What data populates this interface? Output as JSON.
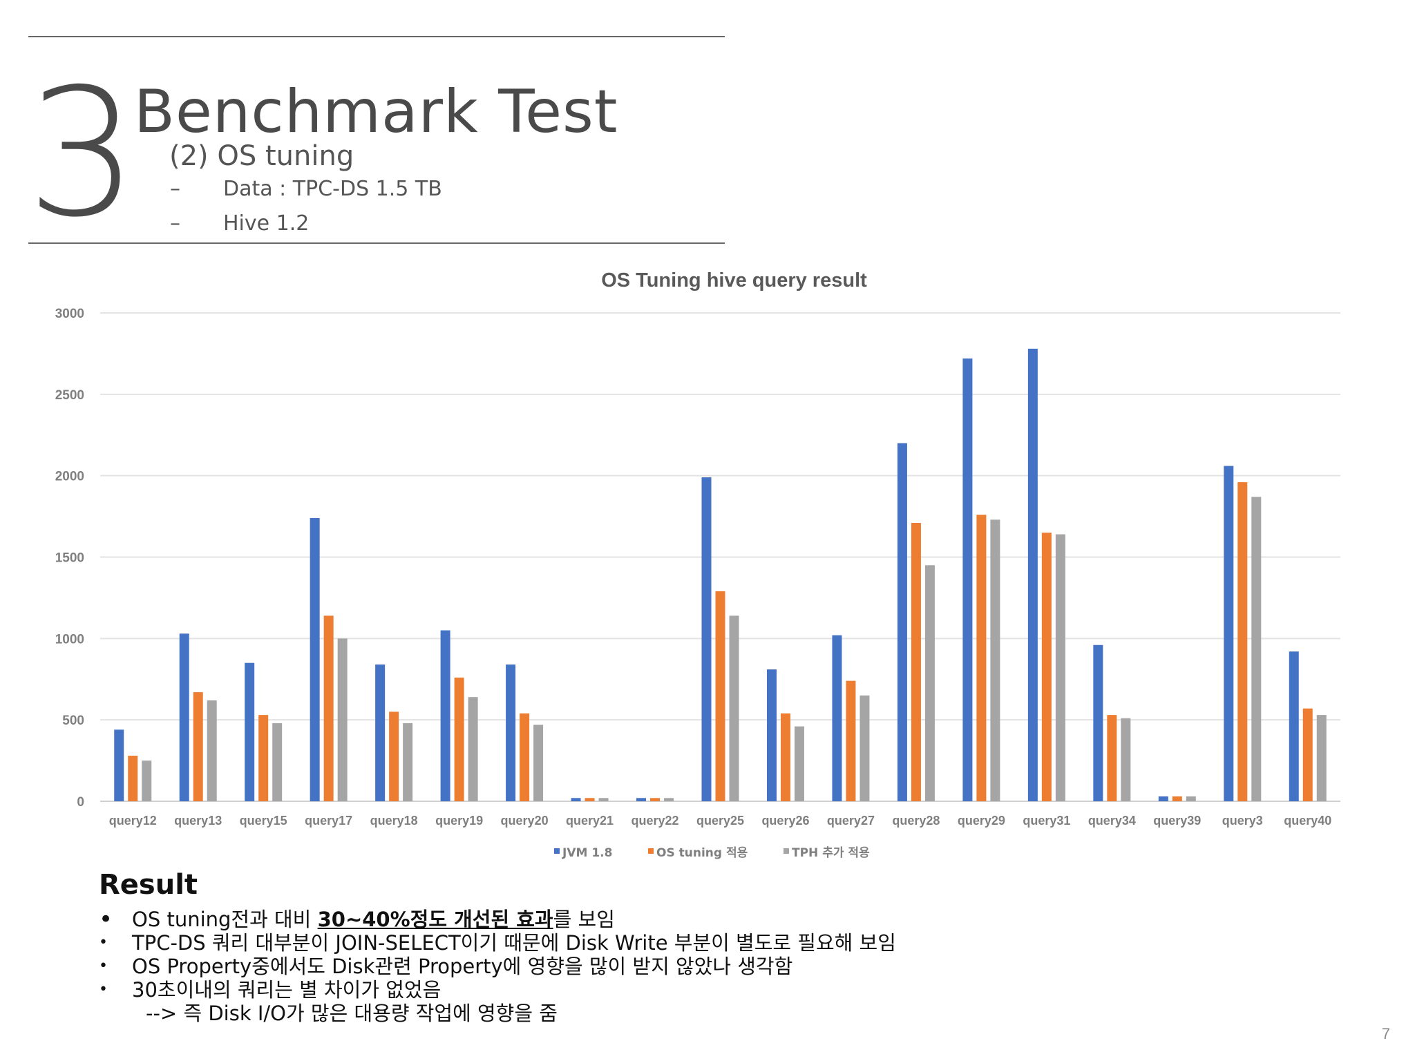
{
  "header": {
    "section_number": "3",
    "title": "Benchmark Test",
    "subtitle": "(2) OS tuning",
    "specs": [
      {
        "dash": "–",
        "text": "Data : TPC-DS 1.5 TB"
      },
      {
        "dash": "–",
        "text": "Hive 1.2"
      }
    ]
  },
  "chart_data": {
    "type": "bar",
    "title": "OS Tuning hive query result",
    "xlabel": "",
    "ylabel": "",
    "ylim": [
      0,
      3000
    ],
    "yticks": [
      0,
      500,
      1000,
      1500,
      2000,
      2500,
      3000
    ],
    "grid": true,
    "legend_position": "bottom",
    "categories": [
      "query12",
      "query13",
      "query15",
      "query17",
      "query18",
      "query19",
      "query20",
      "query21",
      "query22",
      "query25",
      "query26",
      "query27",
      "query28",
      "query29",
      "query31",
      "query34",
      "query39",
      "query3",
      "query40"
    ],
    "series": [
      {
        "name": "JVM 1.8",
        "color": "#4472c4",
        "values": [
          440,
          1030,
          850,
          1740,
          840,
          1050,
          840,
          20,
          20,
          1990,
          810,
          1020,
          2200,
          2720,
          2780,
          960,
          30,
          2060,
          920
        ]
      },
      {
        "name": "OS tuning 적용",
        "color": "#ed7d31",
        "values": [
          280,
          670,
          530,
          1140,
          550,
          760,
          540,
          20,
          20,
          1290,
          540,
          740,
          1710,
          1760,
          1650,
          530,
          30,
          1960,
          570
        ]
      },
      {
        "name": "TPH 추가 적용",
        "color": "#a5a5a5",
        "values": [
          250,
          620,
          480,
          1000,
          480,
          640,
          470,
          20,
          20,
          1140,
          460,
          650,
          1450,
          1730,
          1640,
          510,
          30,
          1870,
          530
        ]
      }
    ]
  },
  "result": {
    "title": "Result",
    "bullets": [
      {
        "dot": "•",
        "pre": "OS tuning전과 대비 ",
        "strong": "30~40%정도 개선된 효과",
        "post": "를 보임"
      },
      {
        "dot": "•",
        "text": "TPC-DS 쿼리 대부분이 JOIN-SELECT이기 때문에 Disk Write 부분이 별도로 필요해 보임"
      },
      {
        "dot": "•",
        "text": "OS Property중에서도 Disk관련 Property에 영향을 많이 받지 않았나 생각함"
      },
      {
        "dot": "•",
        "text": "30초이내의 쿼리는 별 차이가 없었음"
      }
    ],
    "subline": "--> 즉 Disk I/O가 많은 대용량 작업에 영향을 줌"
  },
  "page_number": "7"
}
